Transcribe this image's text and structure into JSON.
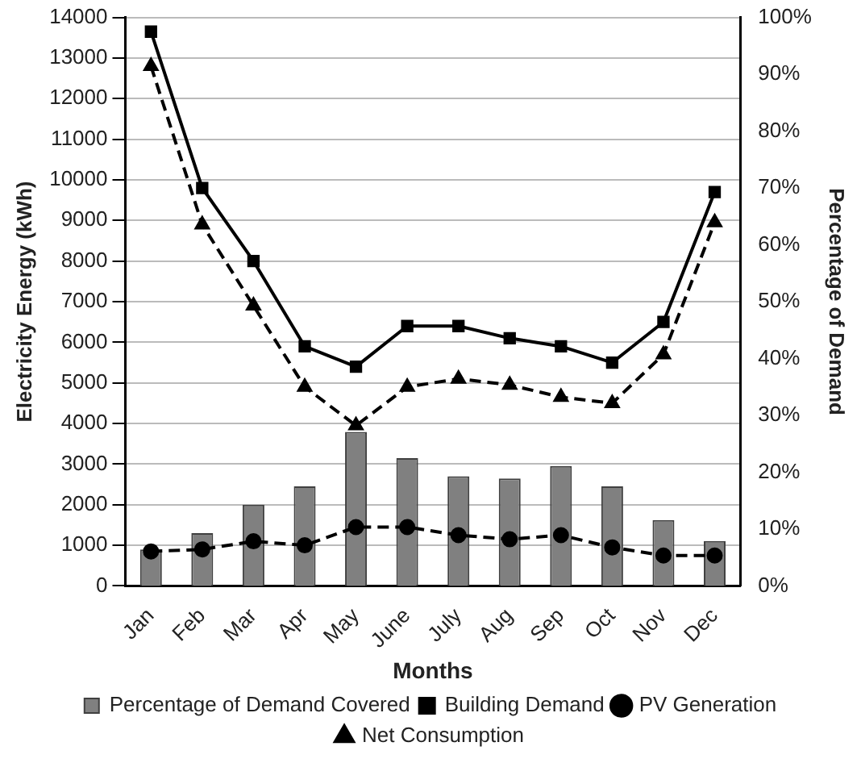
{
  "chart_data": {
    "type": "line",
    "xlabel": "Months",
    "ylabel": "Electricity Energy (kWh)",
    "y2label": "Percentage of Demand",
    "categories": [
      "Jan",
      "Feb",
      "Mar",
      "Apr",
      "May",
      "June",
      "July",
      "Aug",
      "Sep",
      "Oct",
      "Nov",
      "Dec"
    ],
    "series": [
      {
        "name": "Percentage of Demand Covered",
        "type": "bar",
        "axis": "y2",
        "color": "#808080",
        "values": [
          6.4,
          9.3,
          14.3,
          17.5,
          27.1,
          22.5,
          19.3,
          18.9,
          21.1,
          17.5,
          11.6,
          7.9
        ]
      },
      {
        "name": "Building Demand",
        "color": "#000000",
        "marker": "square",
        "line_style": "solid",
        "values": [
          13650,
          9800,
          8000,
          5900,
          5400,
          6400,
          6400,
          6100,
          5900,
          5500,
          6500,
          9700
        ]
      },
      {
        "name": "PV Generation",
        "color": "#000000",
        "marker": "circle",
        "line_style": "dashed",
        "values": [
          850,
          900,
          1100,
          1000,
          1450,
          1450,
          1250,
          1150,
          1250,
          950,
          750,
          750
        ]
      },
      {
        "name": "Net Consumption",
        "color": "#000000",
        "marker": "triangle",
        "line_style": "dashed",
        "values": [
          12800,
          8900,
          6900,
          4900,
          3950,
          4900,
          5100,
          4950,
          4650,
          4500,
          5700,
          8950
        ]
      }
    ],
    "ylim": [
      0,
      14000
    ],
    "yticks": [
      0,
      1000,
      2000,
      3000,
      4000,
      5000,
      6000,
      7000,
      8000,
      9000,
      10000,
      11000,
      12000,
      13000,
      14000
    ],
    "y2lim": [
      0,
      100
    ],
    "y2ticks": [
      {
        "value": 0,
        "label": "0%"
      },
      {
        "value": 10,
        "label": "10%"
      },
      {
        "value": 20,
        "label": "20%"
      },
      {
        "value": 30,
        "label": "30%"
      },
      {
        "value": 40,
        "label": "40%"
      },
      {
        "value": 50,
        "label": "50%"
      },
      {
        "value": 60,
        "label": "60%"
      },
      {
        "value": 70,
        "label": "70%"
      },
      {
        "value": 80,
        "label": "80%"
      },
      {
        "value": 90,
        "label": "90%"
      },
      {
        "value": 100,
        "label": "100%"
      }
    ],
    "grid": "y",
    "legend": "bottom"
  }
}
